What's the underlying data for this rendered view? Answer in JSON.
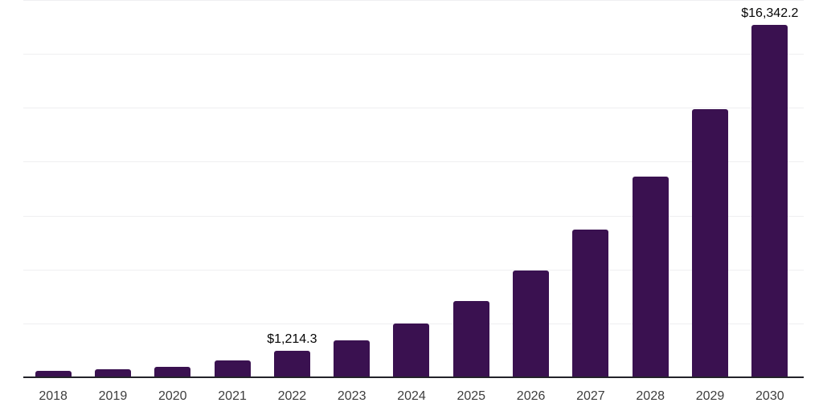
{
  "chart_data": {
    "type": "bar",
    "title": "",
    "xlabel": "",
    "ylabel": "",
    "categories": [
      "2018",
      "2019",
      "2020",
      "2021",
      "2022",
      "2023",
      "2024",
      "2025",
      "2026",
      "2027",
      "2028",
      "2029",
      "2030"
    ],
    "values": [
      305,
      390,
      475,
      790,
      1214.3,
      1720,
      2500,
      3550,
      4970,
      6860,
      9320,
      12430,
      16342.2
    ],
    "value_labels": [
      "",
      "",
      "",
      "",
      "$1,214.3",
      "",
      "",
      "",
      "",
      "",
      "",
      "",
      "$16,342.2"
    ],
    "ylim": [
      0,
      17500
    ],
    "gridline_step": 2500,
    "grid": true,
    "legend": false,
    "colors": {
      "bar": "#3A1150",
      "gridline": "#efeff1",
      "axis_line": "#232329",
      "tick_label": "#3d3d3d",
      "value_label": "#050505",
      "background": "#ffffff"
    }
  }
}
